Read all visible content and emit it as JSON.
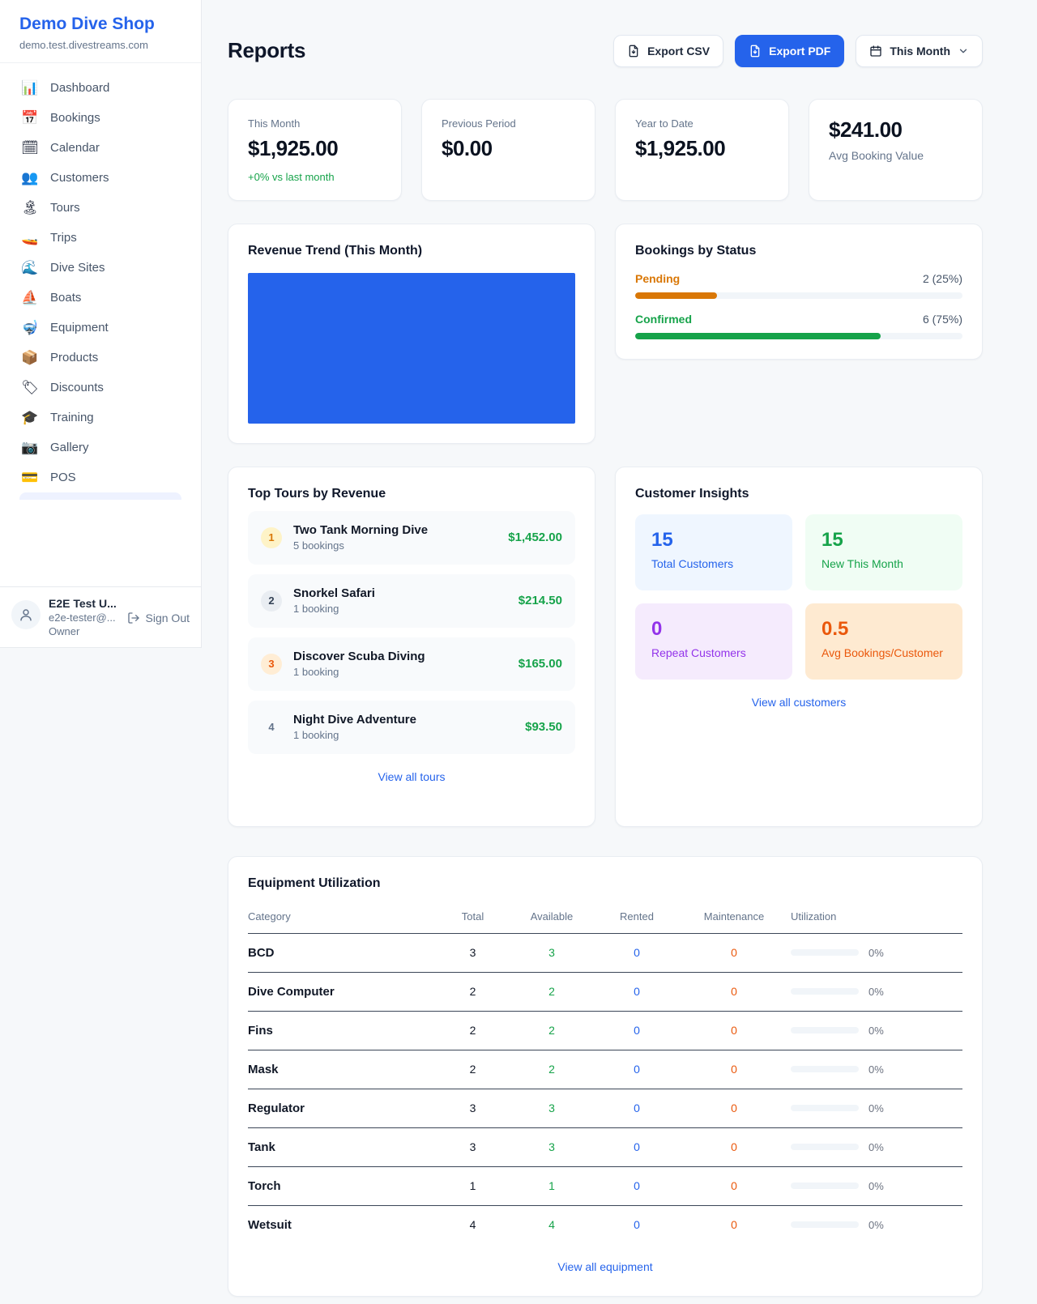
{
  "colors": {
    "accent_blue": "#2563eb",
    "green": "#16a34a",
    "orange": "#d97706",
    "orange_red": "#ea580c",
    "purple": "#9333ea"
  },
  "brand": {
    "name": "Demo Dive Shop",
    "domain": "demo.test.divestreams.com"
  },
  "sidebar": {
    "items": [
      {
        "icon": "📊",
        "label": "Dashboard"
      },
      {
        "icon": "📅",
        "label": "Bookings"
      },
      {
        "icon": "🗓",
        "label": "Calendar"
      },
      {
        "icon": "👥",
        "label": "Customers"
      },
      {
        "icon": "🏝",
        "label": "Tours"
      },
      {
        "icon": "🚤",
        "label": "Trips"
      },
      {
        "icon": "🌊",
        "label": "Dive Sites"
      },
      {
        "icon": "⛵",
        "label": "Boats"
      },
      {
        "icon": "🤿",
        "label": "Equipment"
      },
      {
        "icon": "📦",
        "label": "Products"
      },
      {
        "icon": "🏷",
        "label": "Discounts"
      },
      {
        "icon": "🎓",
        "label": "Training"
      },
      {
        "icon": "📷",
        "label": "Gallery"
      },
      {
        "icon": "💳",
        "label": "POS"
      }
    ]
  },
  "user": {
    "name": "E2E Test U...",
    "email": "e2e-tester@...",
    "role": "Owner",
    "sign_out_label": "Sign Out"
  },
  "header": {
    "title": "Reports",
    "export_csv_label": "Export CSV",
    "export_pdf_label": "Export PDF",
    "period_label": "This Month"
  },
  "stats": [
    {
      "label": "This Month",
      "value": "$1,925.00",
      "delta": "+0% vs last month"
    },
    {
      "label": "Previous Period",
      "value": "$0.00"
    },
    {
      "label": "Year to Date",
      "value": "$1,925.00"
    },
    {
      "label": "Avg Booking Value",
      "value": "$241.00"
    }
  ],
  "revenue_trend": {
    "title": "Revenue Trend (This Month)",
    "note": "chart renders as a solid blue filled block, no axes or labels visible",
    "fill_color": "#2563eb"
  },
  "chart_data": [
    {
      "type": "area",
      "title": "Revenue Trend (This Month)",
      "series": [],
      "note": "solid filled block, no visible axis ticks or data labels"
    },
    {
      "type": "bar",
      "title": "Bookings by Status",
      "categories": [
        "Pending",
        "Confirmed"
      ],
      "values": [
        2,
        6
      ],
      "percentages": [
        25,
        75
      ],
      "value_labels": [
        "2 (25%)",
        "6 (75%)"
      ],
      "colors": [
        "#d97706",
        "#16a34a"
      ]
    }
  ],
  "bookings_by_status": {
    "title": "Bookings by Status",
    "items": [
      {
        "label": "Pending",
        "count_label": "2 (25%)",
        "percent": 25
      },
      {
        "label": "Confirmed",
        "count_label": "6 (75%)",
        "percent": 75
      }
    ]
  },
  "top_tours": {
    "title": "Top Tours by Revenue",
    "items": [
      {
        "rank": "1",
        "name": "Two Tank Morning Dive",
        "bookings": "5 bookings",
        "amount": "$1,452.00"
      },
      {
        "rank": "2",
        "name": "Snorkel Safari",
        "bookings": "1 booking",
        "amount": "$214.50"
      },
      {
        "rank": "3",
        "name": "Discover Scuba Diving",
        "bookings": "1 booking",
        "amount": "$165.00"
      },
      {
        "rank": "4",
        "name": "Night Dive Adventure",
        "bookings": "1 booking",
        "amount": "$93.50"
      }
    ],
    "link": "View all tours"
  },
  "customer_insights": {
    "title": "Customer Insights",
    "tiles": [
      {
        "value": "15",
        "label": "Total Customers"
      },
      {
        "value": "15",
        "label": "New This Month"
      },
      {
        "value": "0",
        "label": "Repeat Customers"
      },
      {
        "value": "0.5",
        "label": "Avg Bookings/Customer"
      }
    ],
    "link": "View all customers"
  },
  "equipment": {
    "title": "Equipment Utilization",
    "columns": [
      "Category",
      "Total",
      "Available",
      "Rented",
      "Maintenance",
      "Utilization"
    ],
    "rows": [
      {
        "category": "BCD",
        "total": 3,
        "available": 3,
        "rented": 0,
        "maintenance": 0,
        "utilization_pct": "0%",
        "utilization": 0
      },
      {
        "category": "Dive Computer",
        "total": 2,
        "available": 2,
        "rented": 0,
        "maintenance": 0,
        "utilization_pct": "0%",
        "utilization": 0
      },
      {
        "category": "Fins",
        "total": 2,
        "available": 2,
        "rented": 0,
        "maintenance": 0,
        "utilization_pct": "0%",
        "utilization": 0
      },
      {
        "category": "Mask",
        "total": 2,
        "available": 2,
        "rented": 0,
        "maintenance": 0,
        "utilization_pct": "0%",
        "utilization": 0
      },
      {
        "category": "Regulator",
        "total": 3,
        "available": 3,
        "rented": 0,
        "maintenance": 0,
        "utilization_pct": "0%",
        "utilization": 0
      },
      {
        "category": "Tank",
        "total": 3,
        "available": 3,
        "rented": 0,
        "maintenance": 0,
        "utilization_pct": "0%",
        "utilization": 0
      },
      {
        "category": "Torch",
        "total": 1,
        "available": 1,
        "rented": 0,
        "maintenance": 0,
        "utilization_pct": "0%",
        "utilization": 0
      },
      {
        "category": "Wetsuit",
        "total": 4,
        "available": 4,
        "rented": 0,
        "maintenance": 0,
        "utilization_pct": "0%",
        "utilization": 0
      }
    ],
    "link": "View all equipment"
  }
}
